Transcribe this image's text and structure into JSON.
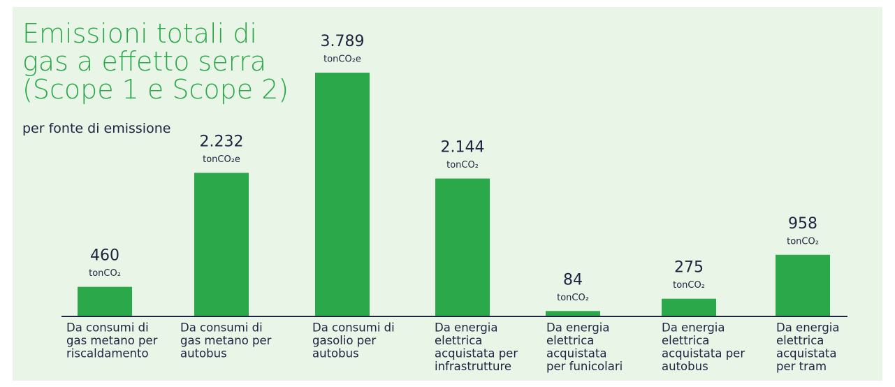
{
  "chart_data": {
    "type": "bar",
    "title": "Emissioni totali di gas a effetto serra (Scope 1 e Scope 2)",
    "subtitle": "per fonte di emissione",
    "categories": [
      [
        "Da consumi di",
        "gas metano per",
        "riscaldamento"
      ],
      [
        "Da consumi di",
        "gas metano per",
        "autobus"
      ],
      [
        "Da consumi di",
        "gasolio per",
        "autobus"
      ],
      [
        "Da energia",
        "elettrica",
        "acquistata per",
        "infrastrutture"
      ],
      [
        "Da energia",
        "elettrica",
        "acquistata",
        "per funicolari"
      ],
      [
        "Da energia",
        "elettrica",
        "acquistata per",
        "autobus"
      ],
      [
        "Da energia",
        "elettrica",
        "acquistata",
        "per tram"
      ]
    ],
    "values": [
      460,
      2232,
      3789,
      2144,
      84,
      275,
      958
    ],
    "value_labels": [
      "460",
      "2.232",
      "3.789",
      "2.144",
      "84",
      "275",
      "958"
    ],
    "units": [
      "tonCO₂",
      "tonCO₂e",
      "tonCO₂e",
      "tonCO₂",
      "tonCO₂",
      "tonCO₂",
      "tonCO₂"
    ],
    "color": "#2ba84a"
  }
}
